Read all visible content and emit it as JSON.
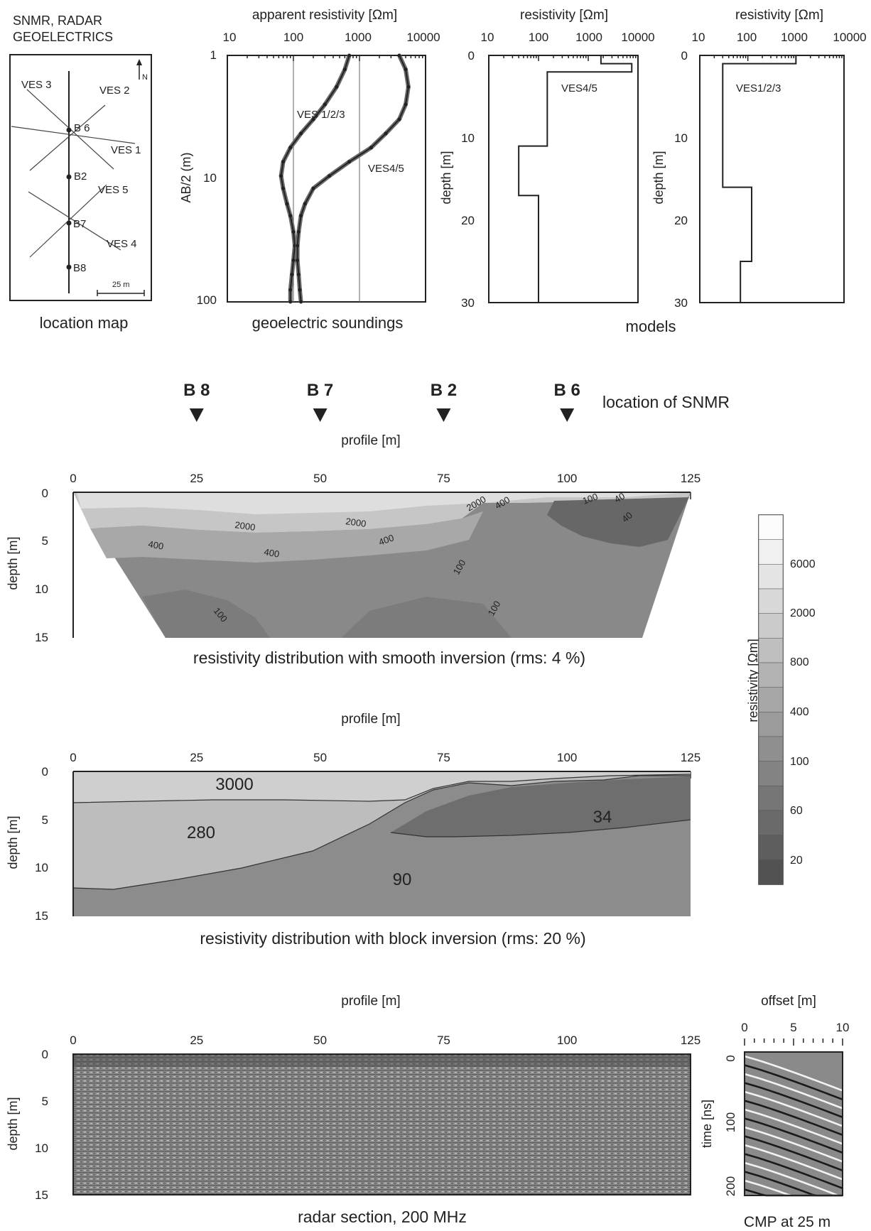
{
  "location_map": {
    "title_lines": [
      "SNMR, RADAR",
      "GEOELECTRICS"
    ],
    "north": "N",
    "labels": [
      "VES 3",
      "VES 2",
      "B 6",
      "VES 1",
      "B2",
      "VES 5",
      "B7",
      "VES 4",
      "B8"
    ],
    "scale": "25 m",
    "caption": "location map"
  },
  "soundings": {
    "x_title": "apparent resistivity [Ωm]",
    "y_title": "AB/2 (m)",
    "x_ticks": [
      "10",
      "100",
      "1000",
      "10000"
    ],
    "y_ticks": [
      "1",
      "10",
      "100"
    ],
    "curves": [
      {
        "name": "VES 1/2/3",
        "x": [
          700,
          600,
          450,
          300,
          200,
          130,
          90,
          70,
          65,
          70,
          80,
          90,
          100,
          105,
          100,
          95,
          90,
          90
        ],
        "ab2": [
          1,
          1.3,
          1.8,
          2.5,
          3.3,
          4.3,
          5.6,
          7.3,
          9.5,
          12,
          16,
          20,
          27,
          35,
          46,
          60,
          80,
          100
        ]
      },
      {
        "name": "VES4/5",
        "x": [
          4000,
          5000,
          5500,
          5000,
          4000,
          2500,
          1500,
          700,
          350,
          200,
          150,
          130,
          120,
          115,
          115,
          120,
          125,
          130
        ],
        "ab2": [
          1,
          1.3,
          1.8,
          2.5,
          3.3,
          4.3,
          5.6,
          7.3,
          9.5,
          12,
          16,
          20,
          27,
          35,
          46,
          60,
          80,
          100
        ]
      }
    ],
    "caption": "geoelectric soundings"
  },
  "models": {
    "x_title": "resistivity [Ωm]",
    "y_title": "depth [m]",
    "x_ticks_a": [
      "10",
      "100",
      "1000",
      "10000"
    ],
    "x_ticks_b": [
      "10",
      "100",
      "1000",
      "10000"
    ],
    "y_ticks": [
      "0",
      "10",
      "20",
      "30"
    ],
    "ves45": {
      "name": "VES4/5",
      "rho": [
        1800,
        7500,
        150,
        40,
        100
      ],
      "depth_bottom": [
        1,
        2,
        11,
        17,
        30
      ]
    },
    "ves123": {
      "name": "VES1/2/3",
      "rho": [
        1000,
        30,
        120,
        70
      ],
      "depth_bottom": [
        1,
        16,
        25,
        30
      ]
    },
    "caption": "models"
  },
  "snmr": {
    "stations": [
      {
        "label": "B 8",
        "x": 25
      },
      {
        "label": "B 7",
        "x": 50
      },
      {
        "label": "B 2",
        "x": 75
      },
      {
        "label": "B 6",
        "x": 100
      }
    ],
    "legend": "location of SNMR"
  },
  "smooth": {
    "x_title": "profile [m]",
    "y_title": "depth [m]",
    "x_ticks": [
      "0",
      "25",
      "50",
      "75",
      "100",
      "125"
    ],
    "y_ticks": [
      "0",
      "5",
      "10",
      "15"
    ],
    "contour_labels": [
      "2000",
      "2000",
      "2000",
      "400",
      "100",
      "40",
      "40",
      "400",
      "400",
      "400",
      "100",
      "100",
      "100"
    ],
    "caption": "resistivity distribution with smooth inversion (rms: 4 %)"
  },
  "block": {
    "x_title": "profile [m]",
    "y_title": "depth [m]",
    "x_ticks": [
      "0",
      "25",
      "50",
      "75",
      "100",
      "125"
    ],
    "y_ticks": [
      "0",
      "5",
      "10",
      "15"
    ],
    "block_values": [
      "3000",
      "280",
      "34",
      "90"
    ],
    "caption": "resistivity distribution with block inversion (rms: 20 %)"
  },
  "colorbar": {
    "title": "resistivity [Ωm]",
    "ticks": [
      "6000",
      "2000",
      "800",
      "400",
      "100",
      "60",
      "20"
    ]
  },
  "radar": {
    "x_title": "profile [m]",
    "y_title": "depth [m]",
    "x_ticks": [
      "0",
      "25",
      "50",
      "75",
      "100",
      "125"
    ],
    "y_ticks": [
      "0",
      "5",
      "10",
      "15"
    ],
    "caption": "radar section, 200 MHz"
  },
  "cmp": {
    "x_title": "offset [m]",
    "y_title": "time [ns]",
    "x_ticks": [
      "0",
      "5",
      "10"
    ],
    "y_ticks": [
      "0",
      "100",
      "200"
    ],
    "caption": "CMP at 25 m"
  },
  "chart_data": [
    {
      "type": "line",
      "title": "geoelectric soundings",
      "xlabel": "apparent resistivity [Ωm]",
      "ylabel": "AB/2 (m)",
      "x_scale": "log",
      "y_scale": "log",
      "xlim": [
        10,
        10000
      ],
      "ylim": [
        1,
        100
      ],
      "series": [
        {
          "name": "VES 1/2/3",
          "x": [
            700,
            600,
            450,
            300,
            200,
            130,
            90,
            70,
            65,
            70,
            80,
            90,
            100,
            105,
            100,
            95,
            90,
            90
          ],
          "y": [
            1,
            1.3,
            1.8,
            2.5,
            3.3,
            4.3,
            5.6,
            7.3,
            9.5,
            12,
            16,
            20,
            27,
            35,
            46,
            60,
            80,
            100
          ]
        },
        {
          "name": "VES4/5",
          "x": [
            4000,
            5000,
            5500,
            5000,
            4000,
            2500,
            1500,
            700,
            350,
            200,
            150,
            130,
            120,
            115,
            115,
            120,
            125,
            130
          ],
          "y": [
            1,
            1.3,
            1.8,
            2.5,
            3.3,
            4.3,
            5.6,
            7.3,
            9.5,
            12,
            16,
            20,
            27,
            35,
            46,
            60,
            80,
            100
          ]
        }
      ]
    },
    {
      "type": "line",
      "title": "models",
      "xlabel": "resistivity [Ωm]",
      "ylabel": "depth [m]",
      "x_scale": "log",
      "xlim": [
        10,
        10000
      ],
      "ylim": [
        0,
        30
      ],
      "series": [
        {
          "name": "VES4/5",
          "rho": [
            1800,
            7500,
            150,
            40,
            100
          ],
          "depth_bottom": [
            1,
            2,
            11,
            17,
            30
          ]
        },
        {
          "name": "VES1/2/3",
          "rho": [
            1000,
            30,
            120,
            70
          ],
          "depth_bottom": [
            1,
            16,
            25,
            30
          ]
        }
      ]
    },
    {
      "type": "heatmap",
      "title": "resistivity distribution with block inversion (rms: 20 %)",
      "xlabel": "profile [m]",
      "ylabel": "depth [m]",
      "xlim": [
        0,
        125
      ],
      "ylim": [
        0,
        15
      ],
      "blocks": [
        {
          "value": 3000
        },
        {
          "value": 280
        },
        {
          "value": 34
        },
        {
          "value": 90
        }
      ]
    }
  ]
}
